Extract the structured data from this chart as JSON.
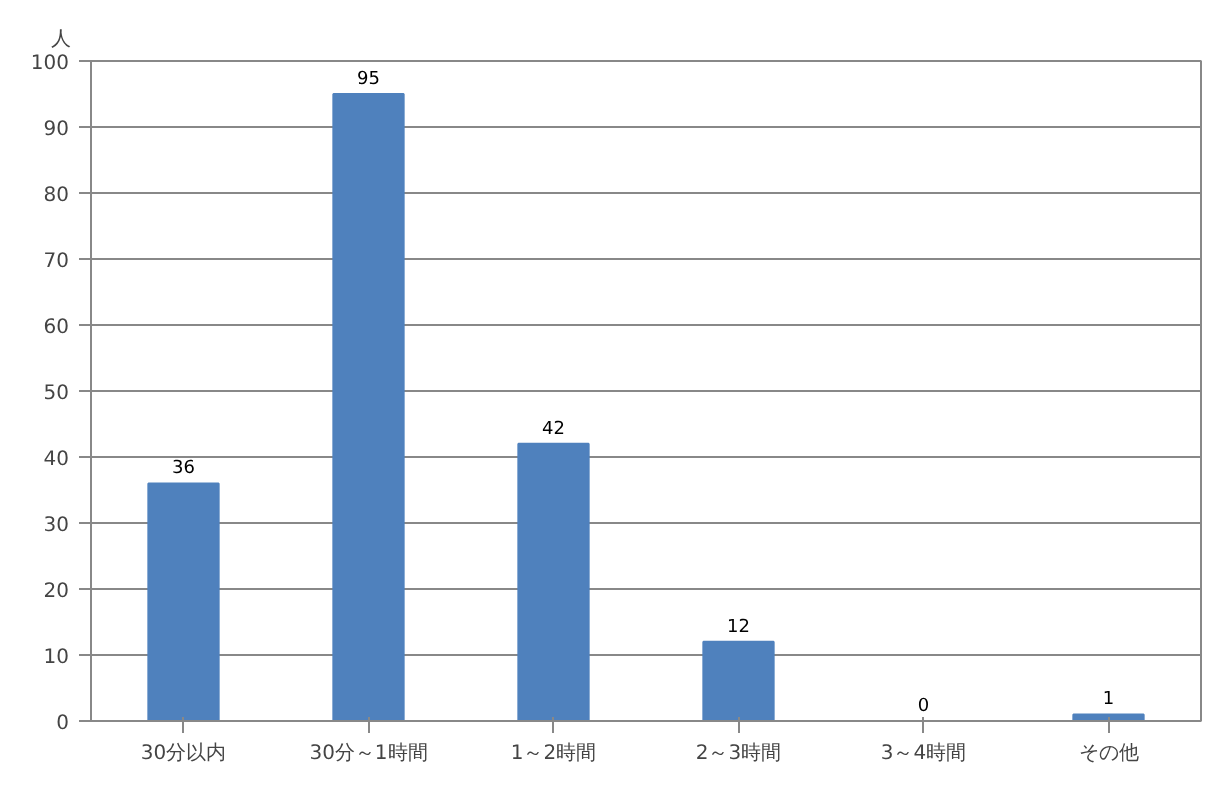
{
  "chart_data": {
    "type": "bar",
    "ylabel": "人",
    "categories": [
      "30分以内",
      "30分～1時間",
      "1～2時間",
      "2～3時間",
      "3～4時間",
      "その他"
    ],
    "values": [
      36,
      95,
      42,
      12,
      0,
      1
    ],
    "color": "#4f81bd",
    "ylim": [
      0,
      100
    ],
    "yticks": [
      0,
      10,
      20,
      30,
      40,
      50,
      60,
      70,
      80,
      90,
      100
    ],
    "grid": "y",
    "data_labels": true
  }
}
